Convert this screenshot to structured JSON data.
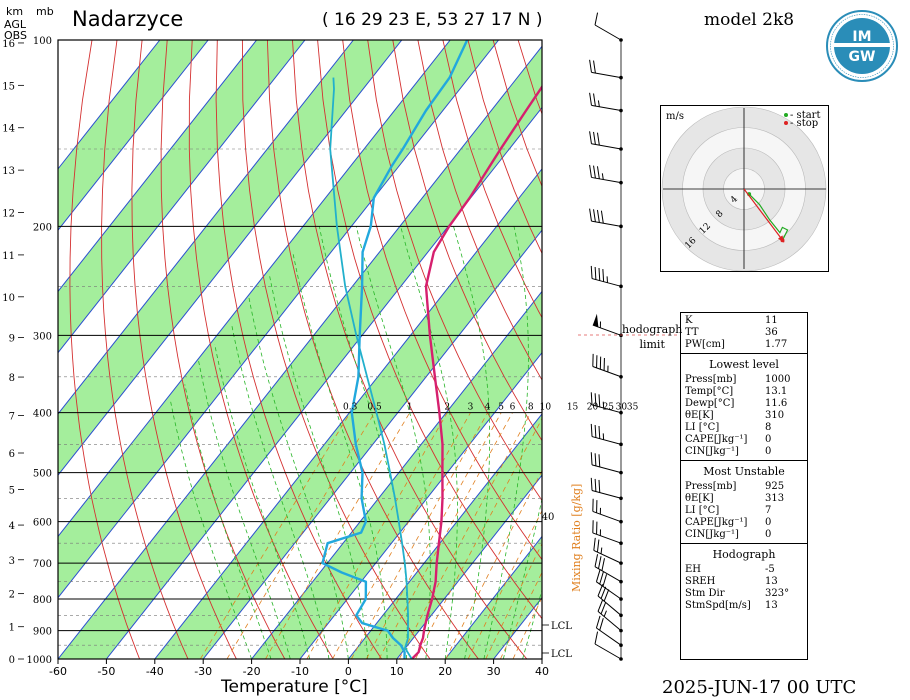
{
  "header": {
    "station": "Nadarzyce",
    "coordinates": "( 16 29 23  E, 53 27 17 N )",
    "model": "model 2k8",
    "date": "2025-JUN-17    00 UTC",
    "left_axis_units": "km",
    "agl": "AGL",
    "obs": "OBS",
    "pressure_units": "mb"
  },
  "logo": {
    "text": "IMGW"
  },
  "hodograph": {
    "units": "m/s",
    "legend_start": "- start",
    "legend_stop": "- stop",
    "ring_labels": [
      "4",
      "8",
      "12",
      "16"
    ],
    "side_label_1": "hodograph",
    "side_label_2": "limit",
    "colors": {
      "start": "#22aa22",
      "stop": "#dd2222",
      "trace": "#22aa22",
      "storm": "#dd2222"
    }
  },
  "stats": {
    "top": [
      {
        "k": "K",
        "v": "11"
      },
      {
        "k": "TT",
        "v": "36"
      },
      {
        "k": "PW[cm]",
        "v": "1.77"
      }
    ],
    "lowest_title": "Lowest level",
    "lowest": [
      {
        "k": "Press[mb]",
        "v": "1000"
      },
      {
        "k": "Temp[°C]",
        "v": "13.1"
      },
      {
        "k": "Dewp[°C]",
        "v": "11.6"
      },
      {
        "k": "θE[K]",
        "v": "310"
      },
      {
        "k": "LI [°C]",
        "v": "8"
      },
      {
        "k": "CAPE[Jkg⁻¹]",
        "v": "0"
      },
      {
        "k": "CIN[Jkg⁻¹]",
        "v": "0"
      }
    ],
    "unstable_title": "Most Unstable",
    "unstable": [
      {
        "k": "Press[mb]",
        "v": "925"
      },
      {
        "k": "θE[K]",
        "v": "313"
      },
      {
        "k": "LI [°C]",
        "v": "7"
      },
      {
        "k": "CAPE[Jkg⁻¹]",
        "v": "0"
      },
      {
        "k": "CIN[Jkg⁻¹]",
        "v": "0"
      }
    ],
    "hodo_title": "Hodograph",
    "hodo": [
      {
        "k": "EH",
        "v": "-5"
      },
      {
        "k": "SREH",
        "v": "13"
      },
      {
        "k": "Stm Dir",
        "v": "323°"
      },
      {
        "k": "StmSpd[m/s]",
        "v": "13"
      }
    ]
  },
  "chart_data": {
    "type": "line",
    "title": "Nadarzyce",
    "xlabel": "Temperature [°C]",
    "ylabel": "mb",
    "x_ticks": [
      -60,
      -50,
      -40,
      -30,
      -20,
      -10,
      0,
      10,
      20,
      30,
      40
    ],
    "pressure_labels": [
      100,
      200,
      300,
      400,
      500,
      600,
      700,
      800,
      900,
      1000
    ],
    "height_km_labels": [
      0,
      1,
      2,
      3,
      4,
      5,
      6,
      7,
      8,
      9,
      10,
      11,
      12,
      13,
      14,
      15,
      16
    ],
    "mixing_ratio_labels": [
      "0.3",
      "0.5",
      "1",
      "2",
      "3",
      "4",
      "5",
      "6",
      "8",
      "10",
      "15",
      "20",
      "25",
      "30",
      "35"
    ],
    "mixing_ratio_title": "Mixing Ratio [g/kg]",
    "lcl_label": "LCL",
    "extra_label_40": "40",
    "colors": {
      "temperature": "#d6206e",
      "dewpoint": "#22a8dd",
      "parcel": "#22b0cc",
      "isotherm": "#2a4fd0",
      "dry_adiabat": "#d43030",
      "moist_adiabat": "#27b427",
      "mixing_ratio": "#e08020",
      "shading": "#a4ee9c"
    },
    "series": [
      {
        "name": "temperature",
        "points": [
          [
            1000,
            13.1
          ],
          [
            975,
            13.4
          ],
          [
            950,
            12.6
          ],
          [
            925,
            12.0
          ],
          [
            900,
            11.0
          ],
          [
            850,
            9.2
          ],
          [
            800,
            7.5
          ],
          [
            750,
            5.4
          ],
          [
            700,
            2.6
          ],
          [
            650,
            -0.2
          ],
          [
            600,
            -3.2
          ],
          [
            550,
            -6.8
          ],
          [
            500,
            -11.0
          ],
          [
            450,
            -15.6
          ],
          [
            400,
            -21.4
          ],
          [
            350,
            -28.2
          ],
          [
            300,
            -36.0
          ],
          [
            250,
            -44.8
          ],
          [
            220,
            -48.8
          ],
          [
            200,
            -49.8
          ],
          [
            180,
            -50.2
          ],
          [
            150,
            -51.8
          ],
          [
            130,
            -52.8
          ],
          [
            115,
            -53.6
          ],
          [
            100,
            -55.2
          ]
        ]
      },
      {
        "name": "dewpoint",
        "points": [
          [
            1000,
            11.6
          ],
          [
            975,
            10.5
          ],
          [
            950,
            8.6
          ],
          [
            925,
            5.8
          ],
          [
            900,
            3.5
          ],
          [
            875,
            -3.0
          ],
          [
            850,
            -5.5
          ],
          [
            800,
            -6.2
          ],
          [
            750,
            -9.0
          ],
          [
            725,
            -15.5
          ],
          [
            700,
            -21.0
          ],
          [
            650,
            -23.2
          ],
          [
            625,
            -18.0
          ],
          [
            600,
            -18.8
          ],
          [
            550,
            -23.5
          ],
          [
            500,
            -27.5
          ],
          [
            450,
            -33.5
          ],
          [
            400,
            -39.5
          ],
          [
            350,
            -44.0
          ],
          [
            300,
            -50.5
          ],
          [
            250,
            -58.0
          ],
          [
            220,
            -63.5
          ],
          [
            200,
            -66.0
          ],
          [
            180,
            -70.0
          ],
          [
            160,
            -71.5
          ],
          [
            150,
            -72.0
          ],
          [
            130,
            -73.5
          ],
          [
            115,
            -74.0
          ],
          [
            100,
            -76.5
          ]
        ]
      },
      {
        "name": "parcel",
        "points": [
          [
            1000,
            13.1
          ],
          [
            960,
            9.9
          ],
          [
            925,
            8.9
          ],
          [
            900,
            7.7
          ],
          [
            850,
            5.2
          ],
          [
            800,
            2.4
          ],
          [
            750,
            -0.6
          ],
          [
            700,
            -4.0
          ],
          [
            650,
            -7.8
          ],
          [
            600,
            -12.0
          ],
          [
            550,
            -16.6
          ],
          [
            500,
            -21.8
          ],
          [
            450,
            -27.6
          ],
          [
            400,
            -34.4
          ],
          [
            350,
            -42.2
          ],
          [
            300,
            -51.2
          ],
          [
            250,
            -61.5
          ],
          [
            200,
            -73.0
          ],
          [
            150,
            -87.0
          ],
          [
            120,
            -96.0
          ],
          [
            115,
            -98.0
          ]
        ]
      }
    ],
    "wind_barbs": [
      {
        "p": 1000,
        "dir": 300,
        "spd_kt": 10
      },
      {
        "p": 950,
        "dir": 305,
        "spd_kt": 20
      },
      {
        "p": 900,
        "dir": 310,
        "spd_kt": 25
      },
      {
        "p": 850,
        "dir": 310,
        "spd_kt": 30
      },
      {
        "p": 800,
        "dir": 305,
        "spd_kt": 30
      },
      {
        "p": 750,
        "dir": 300,
        "spd_kt": 30
      },
      {
        "p": 700,
        "dir": 295,
        "spd_kt": 25
      },
      {
        "p": 650,
        "dir": 290,
        "spd_kt": 25
      },
      {
        "p": 600,
        "dir": 290,
        "spd_kt": 25
      },
      {
        "p": 550,
        "dir": 285,
        "spd_kt": 30
      },
      {
        "p": 500,
        "dir": 285,
        "spd_kt": 30
      },
      {
        "p": 450,
        "dir": 285,
        "spd_kt": 35
      },
      {
        "p": 400,
        "dir": 285,
        "spd_kt": 35
      },
      {
        "p": 350,
        "dir": 290,
        "spd_kt": 45
      },
      {
        "p": 300,
        "dir": 290,
        "spd_kt": 55
      },
      {
        "p": 250,
        "dir": 285,
        "spd_kt": 45
      },
      {
        "p": 200,
        "dir": 280,
        "spd_kt": 40
      },
      {
        "p": 170,
        "dir": 280,
        "spd_kt": 35
      },
      {
        "p": 150,
        "dir": 280,
        "spd_kt": 30
      },
      {
        "p": 130,
        "dir": 280,
        "spd_kt": 25
      },
      {
        "p": 115,
        "dir": 280,
        "spd_kt": 20
      },
      {
        "p": 100,
        "dir": 300,
        "spd_kt": 10
      }
    ],
    "hodograph_points": [
      {
        "u": 1.0,
        "v": -1.0
      },
      {
        "u": 3.0,
        "v": -3.0
      },
      {
        "u": 5.0,
        "v": -6.0
      },
      {
        "u": 7.0,
        "v": -8.5
      },
      {
        "u": 7.5,
        "v": -7.5
      },
      {
        "u": 8.5,
        "v": -8.0
      },
      {
        "u": 7.5,
        "v": -10.0
      }
    ],
    "storm_motion": {
      "dir_deg": 323,
      "speed_ms": 13
    }
  }
}
